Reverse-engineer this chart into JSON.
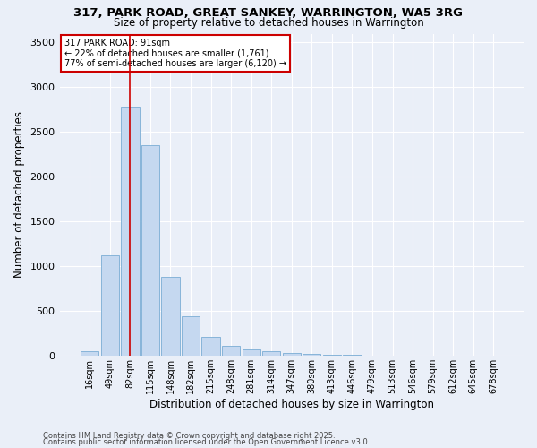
{
  "title_line1": "317, PARK ROAD, GREAT SANKEY, WARRINGTON, WA5 3RG",
  "title_line2": "Size of property relative to detached houses in Warrington",
  "xlabel": "Distribution of detached houses by size in Warrington",
  "ylabel": "Number of detached properties",
  "categories": [
    "16sqm",
    "49sqm",
    "82sqm",
    "115sqm",
    "148sqm",
    "182sqm",
    "215sqm",
    "248sqm",
    "281sqm",
    "314sqm",
    "347sqm",
    "380sqm",
    "413sqm",
    "446sqm",
    "479sqm",
    "513sqm",
    "546sqm",
    "579sqm",
    "612sqm",
    "645sqm",
    "678sqm"
  ],
  "values": [
    50,
    1120,
    2780,
    2350,
    880,
    440,
    205,
    105,
    70,
    50,
    30,
    15,
    10,
    5,
    2,
    1,
    1,
    0,
    0,
    0,
    0
  ],
  "bar_color": "#c5d8f0",
  "bar_edge_color": "#7aadd4",
  "highlight_line_color": "#cc0000",
  "annotation_title": "317 PARK ROAD: 91sqm",
  "annotation_line1": "← 22% of detached houses are smaller (1,761)",
  "annotation_line2": "77% of semi-detached houses are larger (6,120) →",
  "annotation_box_color": "#cc0000",
  "background_color": "#eaeff8",
  "ylim": [
    0,
    3600
  ],
  "yticks": [
    0,
    500,
    1000,
    1500,
    2000,
    2500,
    3000,
    3500
  ],
  "footer_line1": "Contains HM Land Registry data © Crown copyright and database right 2025.",
  "footer_line2": "Contains public sector information licensed under the Open Government Licence v3.0.",
  "figsize": [
    6.0,
    5.0
  ],
  "dpi": 100
}
